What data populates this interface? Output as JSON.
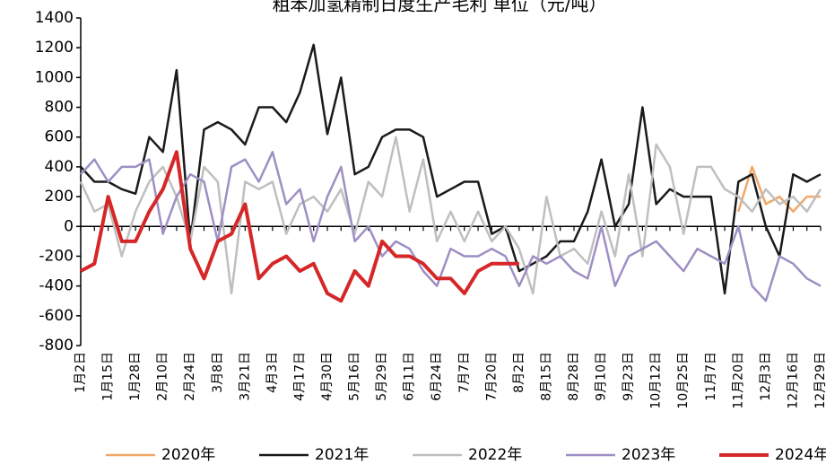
{
  "chart_data": {
    "type": "line",
    "title": "粗苯加氢精制日度生产毛利 单位（元/吨）",
    "categories": [
      "1月2日",
      null,
      "1月15日",
      null,
      "1月28日",
      null,
      "2月10日",
      null,
      "2月24日",
      null,
      "3月8日",
      null,
      "3月21日",
      null,
      "4月3日",
      null,
      "4月17日",
      null,
      "4月30日",
      null,
      "5月16日",
      null,
      "5月29日",
      null,
      "6月11日",
      null,
      "6月24日",
      null,
      "7月7日",
      null,
      "7月20日",
      null,
      "8月2日",
      null,
      "8月15日",
      null,
      "8月28日",
      null,
      "9月10日",
      null,
      "9月23日",
      null,
      "10月12日",
      null,
      "10月25日",
      null,
      "11月7日",
      null,
      "11月20日",
      null,
      "12月3日",
      null,
      "12月16日",
      null,
      "12月29日"
    ],
    "series": [
      {
        "name": "2020年",
        "color": "#f0a868",
        "width": 2.5,
        "values": [
          null,
          null,
          null,
          null,
          null,
          null,
          null,
          null,
          null,
          null,
          null,
          null,
          null,
          null,
          null,
          null,
          null,
          null,
          null,
          null,
          null,
          null,
          null,
          null,
          null,
          null,
          null,
          null,
          null,
          null,
          null,
          null,
          null,
          null,
          null,
          null,
          null,
          null,
          null,
          null,
          null,
          null,
          null,
          null,
          null,
          null,
          null,
          null,
          100,
          400,
          150,
          200,
          100,
          200,
          200
        ]
      },
      {
        "name": "2021年",
        "color": "#1a1a1a",
        "width": 2.5,
        "values": [
          400,
          300,
          300,
          250,
          220,
          600,
          500,
          1050,
          -100,
          650,
          700,
          650,
          550,
          800,
          800,
          700,
          900,
          1220,
          620,
          1000,
          350,
          400,
          600,
          650,
          650,
          600,
          200,
          250,
          300,
          300,
          -50,
          0,
          -300,
          -250,
          -200,
          -100,
          -100,
          100,
          450,
          0,
          150,
          800,
          150,
          250,
          200,
          200,
          200,
          -450,
          300,
          350,
          0,
          -200,
          350,
          300,
          350
        ]
      },
      {
        "name": "2022年",
        "color": "#bfbfbf",
        "width": 2.5,
        "values": [
          300,
          100,
          150,
          -200,
          100,
          300,
          400,
          200,
          -100,
          400,
          300,
          -450,
          300,
          250,
          300,
          -50,
          150,
          200,
          100,
          250,
          -50,
          300,
          200,
          600,
          100,
          450,
          -100,
          100,
          -100,
          100,
          -100,
          0,
          -150,
          -450,
          200,
          -200,
          -150,
          -250,
          100,
          -200,
          350,
          -200,
          550,
          400,
          -50,
          400,
          400,
          250,
          200,
          100,
          250,
          150,
          200,
          100,
          250
        ]
      },
      {
        "name": "2023年",
        "color": "#9e8fc4",
        "width": 2.5,
        "values": [
          350,
          450,
          300,
          400,
          400,
          450,
          -50,
          200,
          350,
          300,
          -100,
          400,
          450,
          300,
          500,
          150,
          250,
          -100,
          200,
          400,
          -100,
          0,
          -200,
          -100,
          -150,
          -300,
          -400,
          -150,
          -200,
          -200,
          -150,
          -200,
          -400,
          -200,
          -250,
          -200,
          -300,
          -350,
          0,
          -400,
          -200,
          -150,
          -100,
          -200,
          -300,
          -150,
          -200,
          -250,
          0,
          -400,
          -500,
          -200,
          -250,
          -350,
          -400
        ]
      },
      {
        "name": "2024年",
        "color": "#d62728",
        "width": 4,
        "values": [
          -300,
          -250,
          200,
          -100,
          -100,
          100,
          250,
          500,
          -150,
          -350,
          -100,
          -50,
          150,
          -350,
          -250,
          -200,
          -300,
          -250,
          -450,
          -500,
          -300,
          -400,
          -100,
          -200,
          -200,
          -250,
          -350,
          -350,
          -450,
          -300,
          -250,
          -250,
          -250,
          null,
          null,
          null,
          null,
          null,
          null,
          null,
          null,
          null,
          null,
          null,
          null,
          null,
          null,
          null,
          null,
          null,
          null,
          null,
          null,
          null,
          null
        ]
      }
    ],
    "ylim": [
      -800,
      1400
    ],
    "yticks": [
      -800,
      -600,
      -400,
      -200,
      0,
      200,
      400,
      600,
      800,
      1000,
      1200,
      1400
    ]
  }
}
